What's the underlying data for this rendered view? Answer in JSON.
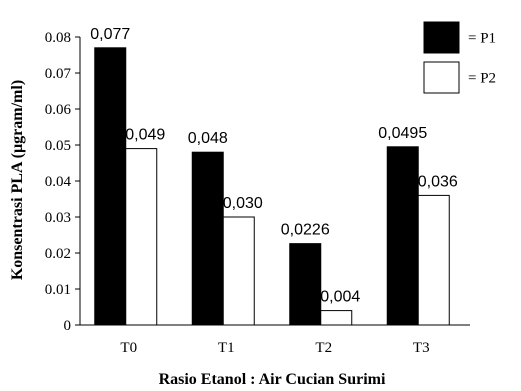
{
  "chart_data": {
    "type": "bar",
    "categories": [
      "T0",
      "T1",
      "T2",
      "T3"
    ],
    "series": [
      {
        "name": "= P1",
        "color": "#000000",
        "values": [
          0.077,
          0.048,
          0.0226,
          0.0495
        ],
        "labels": [
          "0,077",
          "0,048",
          "0,0226",
          "0,0495"
        ]
      },
      {
        "name": "= P2",
        "color": "#ffffff",
        "values": [
          0.049,
          0.03,
          0.004,
          0.036
        ],
        "labels": [
          "0,049",
          "0,030",
          "0,004",
          "0,036"
        ]
      }
    ],
    "xlabel": "Rasio Etanol : Air Cucian Surimi",
    "ylabel": "Konsentrasi PLA (µgram/ml)",
    "ylim": [
      0,
      0.08
    ],
    "yticks": [
      0,
      0.01,
      0.02,
      0.03,
      0.04,
      0.05,
      0.06,
      0.07,
      0.08
    ],
    "ytick_labels": [
      "0",
      "0.01",
      "0.02",
      "0.03",
      "0.04",
      "0.05",
      "0.06",
      "0.07",
      "0.08"
    ],
    "grid": false,
    "legend_position": "top-right"
  }
}
